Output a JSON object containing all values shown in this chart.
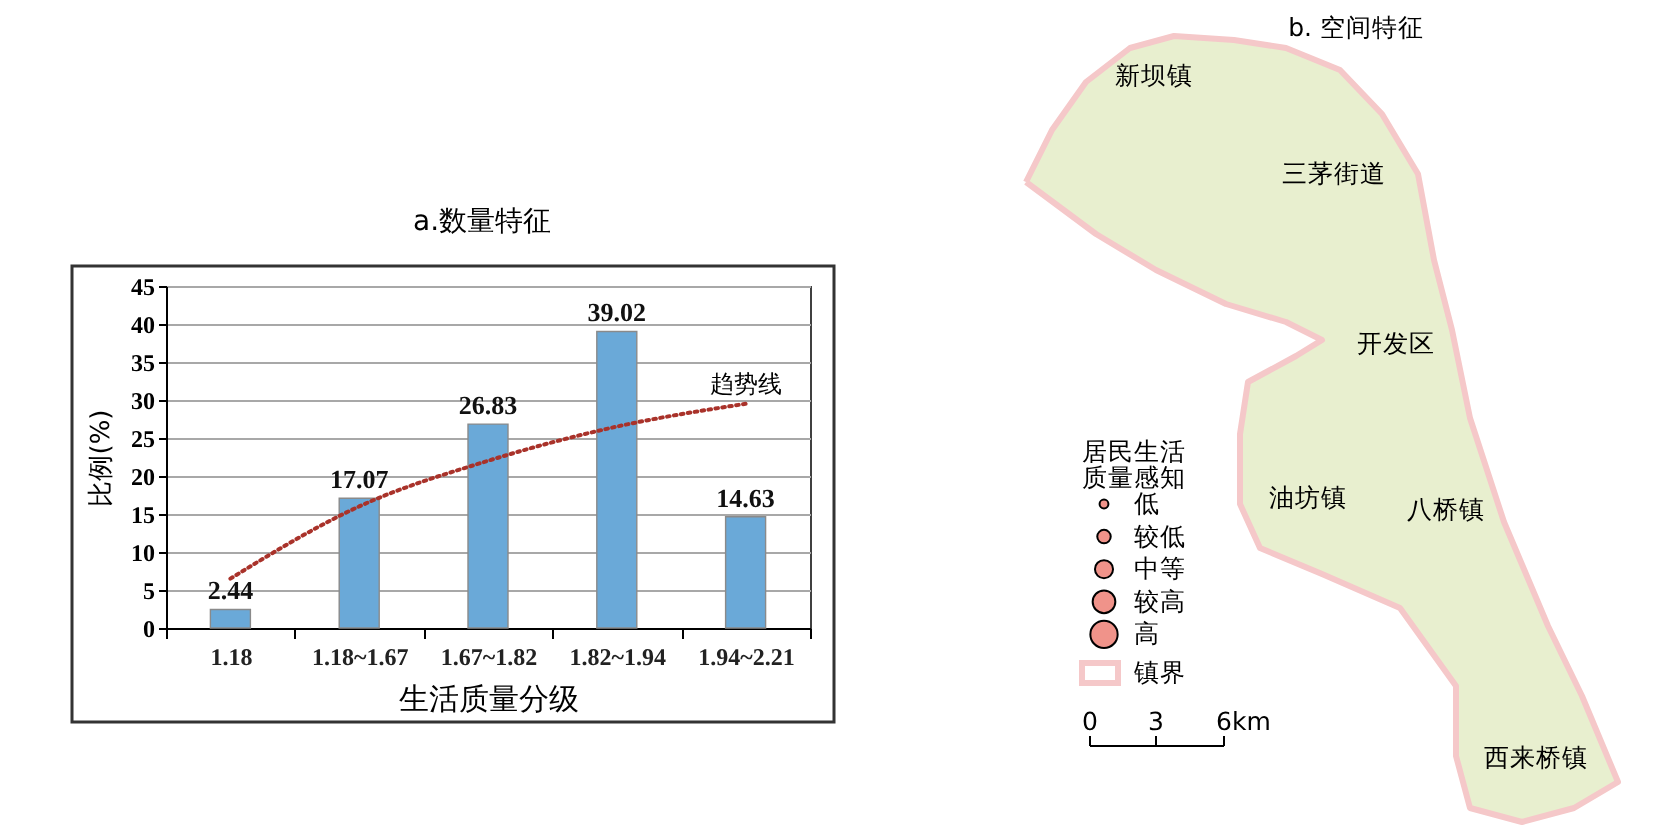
{
  "chart_data": [
    {
      "type": "bar",
      "title": "a.数量特征",
      "xlabel": "生活质量分级",
      "ylabel": "比例(%)",
      "categories": [
        "1.18",
        "1.18~1.67",
        "1.67~1.82",
        "1.82~1.94",
        "1.94~2.21"
      ],
      "series": [
        {
          "type": "bar",
          "color": "#6aa9d8",
          "values": [
            2.44,
            17.07,
            26.83,
            39.02,
            14.63
          ],
          "value_labels": [
            "2.44",
            "17.07",
            "26.83",
            "39.02",
            "14.63"
          ]
        },
        {
          "type": "line",
          "color": "#a9322a",
          "values": [
            6.5,
            16,
            22,
            26.5,
            29.5
          ],
          "line_style": "dotted",
          "marker": "none"
        }
      ],
      "ylim": [
        0,
        45
      ],
      "yticks": [
        0,
        5,
        10,
        15,
        20,
        25,
        30,
        35,
        40,
        45
      ],
      "grid": "y",
      "annotations": [
        "趋势线"
      ]
    },
    {
      "type": "other",
      "title": "b. 空间特征",
      "legend_title": "居民生活质量感知",
      "categories": [
        "低",
        "较低",
        "中等",
        "较高",
        "高",
        "镇界"
      ],
      "colors": [
        "#f0938a",
        "#f0938a",
        "#f0938a",
        "#f0938a",
        "#f0938a",
        "#f5c8c9"
      ],
      "annotations": [
        "新坝镇",
        "三茅街道",
        "开发区",
        "油坊镇",
        "八桥镇",
        "西来桥镇",
        "0",
        "3",
        "6km"
      ]
    }
  ]
}
